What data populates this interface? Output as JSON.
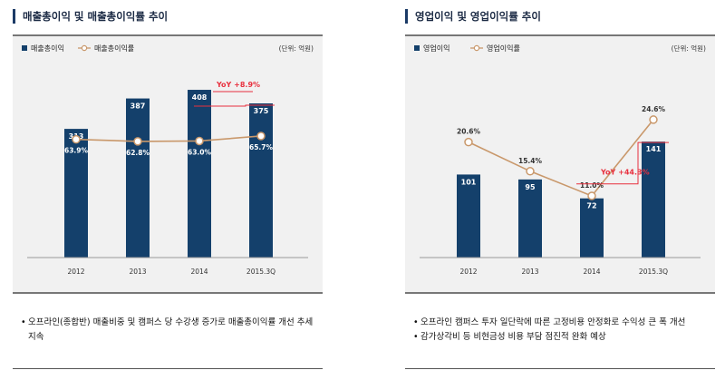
{
  "charts": [
    {
      "panel_title": "매출총이익 및 매출총이익률 추이",
      "notes": [
        "오프라인(종합반) 매출비중 및 캠퍼스 당 수강생 증가로 매출총이익률 개선 추세 지속"
      ]
    },
    {
      "panel_title": "영업이익 및 영업이익률 추이",
      "notes": [
        "오프라인 캠퍼스 투자 일단락에 따른 고정비용 안정화로 수익성 큰 폭 개선",
        "감가상각비 등 비현금성 비용 부담 점진적 완화 예상"
      ]
    }
  ],
  "chart_data": [
    {
      "type": "bar",
      "title": "매출총이익 및 매출총이익률 추이",
      "unit_label": "(단위: 억원)",
      "categories": [
        "2012",
        "2013",
        "2014",
        "2015.3Q"
      ],
      "series": [
        {
          "name": "매출총이익",
          "kind": "bar",
          "values": [
            313,
            387,
            408,
            375
          ],
          "labels": [
            "313",
            "387",
            "408",
            "375"
          ],
          "color": "#14406b"
        },
        {
          "name": "매출총이익률",
          "kind": "line",
          "values": [
            63.9,
            62.8,
            63.0,
            65.7
          ],
          "labels": [
            "63.9%",
            "62.8%",
            "63.0%",
            "65.7%"
          ],
          "color": "#c9986b"
        }
      ],
      "bar_ylim": [
        0,
        450
      ],
      "line_ylim": [
        0,
        100
      ],
      "legend": "top-left",
      "annotation": {
        "text": "YoY +8.9%",
        "color": "#e8303e"
      }
    },
    {
      "type": "bar",
      "title": "영업이익 및 영업이익률 추이",
      "unit_label": "(단위: 억원)",
      "categories": [
        "2012",
        "2013",
        "2014",
        "2015.3Q"
      ],
      "series": [
        {
          "name": "영업이익",
          "kind": "bar",
          "values": [
            101,
            95,
            72,
            141
          ],
          "labels": [
            "101",
            "95",
            "72",
            "141"
          ],
          "color": "#14406b"
        },
        {
          "name": "영업이익률",
          "kind": "line",
          "values": [
            20.6,
            15.4,
            11.0,
            24.6
          ],
          "labels": [
            "20.6%",
            "15.4%",
            "11.0%",
            "24.6%"
          ],
          "color": "#c9986b"
        }
      ],
      "bar_ylim": [
        0,
        225
      ],
      "line_ylim": [
        0,
        33
      ],
      "legend": "top-left",
      "annotation": {
        "text": "YoY +44.3%",
        "color": "#e8303e"
      }
    }
  ]
}
